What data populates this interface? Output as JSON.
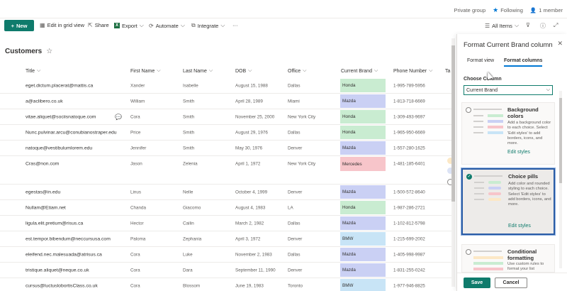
{
  "group_bar": {
    "privacy": "Private group",
    "following": "Following",
    "members": "1 member"
  },
  "command_bar": {
    "new": "New",
    "edit_grid": "Edit in grid view",
    "share": "Share",
    "export": "Export",
    "automate": "Automate",
    "integrate": "Integrate",
    "more": "···",
    "view": "All Items"
  },
  "list": {
    "title": "Customers",
    "columns": [
      "Title",
      "First Name",
      "Last Name",
      "DOB",
      "Office",
      "Current Brand",
      "Phone Number",
      "Ta"
    ],
    "rows": [
      {
        "title": "eget.dictum.placerat@mattis.ca",
        "first": "Xander",
        "last": "Isabelle",
        "dob": "August 15, 1988",
        "office": "Dallas",
        "brand": "Honda",
        "phone": "1-995-789-5956"
      },
      {
        "title": "a@aclibero.co.uk",
        "first": "William",
        "last": "Smith",
        "dob": "April 28, 1989",
        "office": "Miami",
        "brand": "Mazda",
        "phone": "1-813-718-6669"
      },
      {
        "title": "vitae.aliquet@sociisnatoque.com",
        "first": "Cora",
        "last": "Smith",
        "dob": "November 25, 2000",
        "office": "New York City",
        "brand": "Honda",
        "phone": "1-309-493-9697"
      },
      {
        "title": "Nunc.pulvinar.arcu@conubianostraper.edu",
        "first": "Price",
        "last": "Smith",
        "dob": "August 29, 1976",
        "office": "Dallas",
        "brand": "Honda",
        "phone": "1-965-950-6669"
      },
      {
        "title": "natoque@vestibulumlorem.edu",
        "first": "Jennifer",
        "last": "Smith",
        "dob": "May 30, 1976",
        "office": "Denver",
        "brand": "Mazda",
        "phone": "1-557-280-1625"
      },
      {
        "title": "Cras@non.com",
        "first": "Jason",
        "last": "Zelenia",
        "dob": "April 1, 1972",
        "office": "New York City",
        "brand": "Mercedes",
        "phone": "1-481-185-6401"
      },
      {
        "title": "egestas@in.edu",
        "first": "Linus",
        "last": "Nelle",
        "dob": "October 4, 1999",
        "office": "Denver",
        "brand": "Mazda",
        "phone": "1-500-572-8640"
      },
      {
        "title": "Nullam@Etiam.net",
        "first": "Chanda",
        "last": "Giacomo",
        "dob": "August 4, 1983",
        "office": "LA",
        "brand": "Honda",
        "phone": "1-987-286-2721"
      },
      {
        "title": "ligula.elit.pretium@risus.ca",
        "first": "Hector",
        "last": "Cailin",
        "dob": "March 2, 1982",
        "office": "Dallas",
        "brand": "Mazda",
        "phone": "1-102-812-5798"
      },
      {
        "title": "est.tempor.bibendum@neccursusa.com",
        "first": "Paloma",
        "last": "Zephania",
        "dob": "April 3, 1972",
        "office": "Denver",
        "brand": "BMW",
        "phone": "1-215-699-2002"
      },
      {
        "title": "eleifend.nec.malesuada@atrisus.ca",
        "first": "Cora",
        "last": "Luke",
        "dob": "November 2, 1983",
        "office": "Dallas",
        "brand": "Mazda",
        "phone": "1-405-998-9987"
      },
      {
        "title": "tristique.aliquet@neque.co.uk",
        "first": "Cora",
        "last": "Dara",
        "dob": "September 11, 1990",
        "office": "Denver",
        "brand": "Mazda",
        "phone": "1-831-255-0242"
      },
      {
        "title": "cursus@luctuslobortisClass.co.uk",
        "first": "Cora",
        "last": "Blossom",
        "dob": "June 19, 1983",
        "office": "Toronto",
        "brand": "BMW",
        "phone": "1-977-946-8825"
      }
    ]
  },
  "brand_colors": {
    "Honda": "#c9ecd1",
    "Mazda": "#cad0f4",
    "Mercedes": "#f7c5ca",
    "BMW": "#c8e4f6"
  },
  "panel": {
    "title": "Format Current Brand column",
    "tabs": [
      "Format view",
      "Format columns"
    ],
    "choose_label": "Choose Column",
    "selected_column": "Current Brand",
    "options": [
      {
        "title": "Background colors",
        "desc": "Add a background color to each choice. Select 'Edit styles' to add borders, icons, and more.",
        "link": "Edit styles"
      },
      {
        "title": "Choice pills",
        "desc": "Add color and rounded styling to each choice. Select 'Edit styles' to add borders, icons, and more.",
        "link": "Edit styles"
      },
      {
        "title": "Conditional formatting",
        "desc": "Use custom rules to format your list"
      }
    ],
    "save": "Save",
    "cancel": "Cancel"
  },
  "accent_color": "#0f7b6c"
}
